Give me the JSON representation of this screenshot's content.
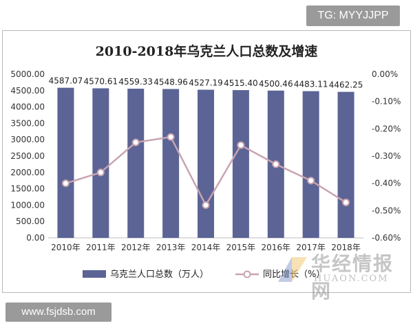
{
  "badges": {
    "top_right": "TG: MYYJJPP",
    "bottom_left": "www.fsjdsb.com"
  },
  "watermark": {
    "cn": "华经情报网",
    "en": "HUAON.COM"
  },
  "chart_data": {
    "type": "bar",
    "title": "2010-2018年乌克兰人口总数及增速",
    "categories": [
      "2010年",
      "2011年",
      "2012年",
      "2013年",
      "2014年",
      "2015年",
      "2016年",
      "2017年",
      "2018年"
    ],
    "series": [
      {
        "name": "乌克兰人口总数（万人）",
        "type": "bar",
        "axis": "left",
        "color": "#5b6495",
        "values": [
          4587.07,
          4570.61,
          4559.33,
          4548.96,
          4527.19,
          4515.4,
          4500.46,
          4483.11,
          4462.25
        ],
        "labels": [
          "4587.07",
          "4570.61",
          "4559.33",
          "4548.96",
          "4527.19",
          "4515.40",
          "4500.46",
          "4483.11",
          "4462.25"
        ]
      },
      {
        "name": "同比增长（%）",
        "type": "line",
        "axis": "right",
        "color": "#c9a4b0",
        "values": [
          -0.4,
          -0.36,
          -0.25,
          -0.23,
          -0.48,
          -0.26,
          -0.33,
          -0.39,
          -0.47
        ]
      }
    ],
    "left_axis": {
      "ylim": [
        0,
        5000
      ],
      "ticks": [
        "0.00",
        "500.00",
        "1000.00",
        "1500.00",
        "2000.00",
        "2500.00",
        "3000.00",
        "3500.00",
        "4000.00",
        "4500.00",
        "5000.00"
      ]
    },
    "right_axis": {
      "ylim": [
        -0.6,
        0.0
      ],
      "ticks": [
        "0.00%",
        "-0.10%",
        "-0.20%",
        "-0.30%",
        "-0.40%",
        "-0.50%",
        "-0.60%"
      ]
    },
    "grid": false,
    "legend_position": "bottom"
  }
}
